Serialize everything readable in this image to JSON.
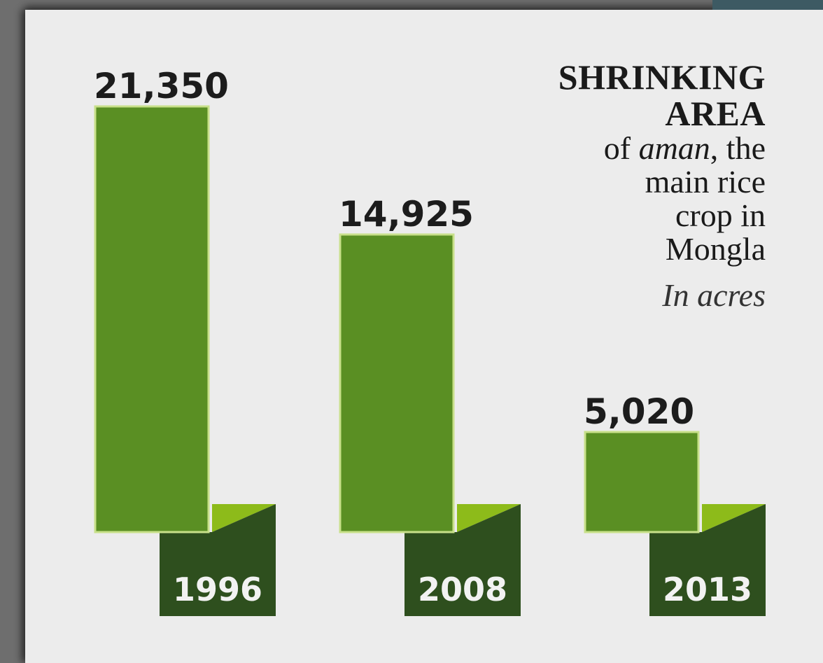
{
  "chart_data": {
    "type": "bar",
    "title_lines": [
      "SHRINKING",
      "AREA"
    ],
    "subtitle_prefix": "of ",
    "subtitle_italic": "aman",
    "subtitle_suffix": ", the",
    "subtitle_lines": [
      "main rice",
      "crop in",
      "Mongla"
    ],
    "unit": "In acres",
    "categories": [
      "1996",
      "2008",
      "2013"
    ],
    "values": [
      21350,
      14925,
      5020
    ],
    "value_labels": [
      "21,350",
      "14,925",
      "5,020"
    ],
    "ylim": [
      0,
      21350
    ]
  },
  "colors": {
    "bar": "#5a8f23",
    "bar_edge": "#c8e08a",
    "flap_dark": "#2e4f1e",
    "flap_light": "#8dbb1a",
    "label_text": "#1c1c1c",
    "year_text": "#f2f2f2"
  }
}
